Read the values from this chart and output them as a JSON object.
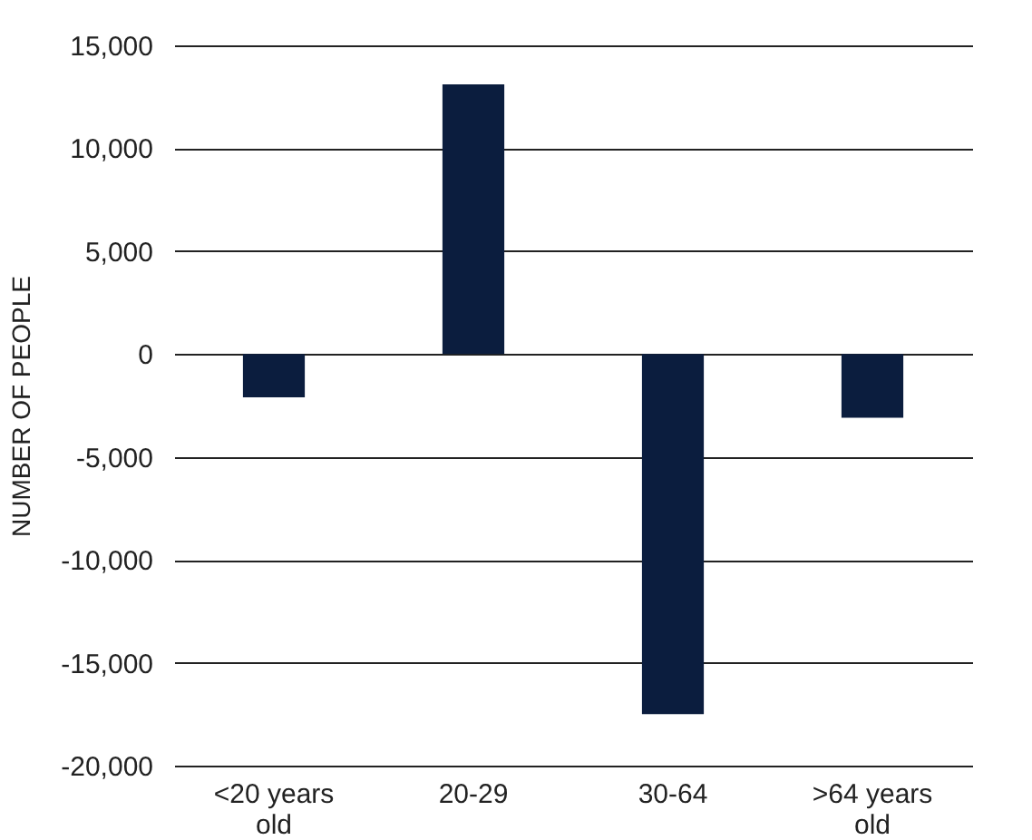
{
  "chart_data": {
    "type": "bar",
    "ylabel": "NUMBER OF PEOPLE",
    "categories": [
      "<20 years old",
      "20-29",
      "30-64",
      ">64 years old"
    ],
    "values": [
      -2100,
      13100,
      -17500,
      -3100
    ],
    "color": "#0b1d3e",
    "ylim": [
      -20000,
      15000
    ],
    "yticks": [
      {
        "value": -20000,
        "label": "-20,000"
      },
      {
        "value": -15000,
        "label": "-15,000"
      },
      {
        "value": -10000,
        "label": "-10,000"
      },
      {
        "value": -5000,
        "label": "-5,000"
      },
      0,
      {
        "value": 5000,
        "label": "5,000"
      },
      {
        "value": 10000,
        "label": "10,000"
      },
      {
        "value": 15000,
        "label": "15,000"
      }
    ],
    "grid": "y"
  }
}
